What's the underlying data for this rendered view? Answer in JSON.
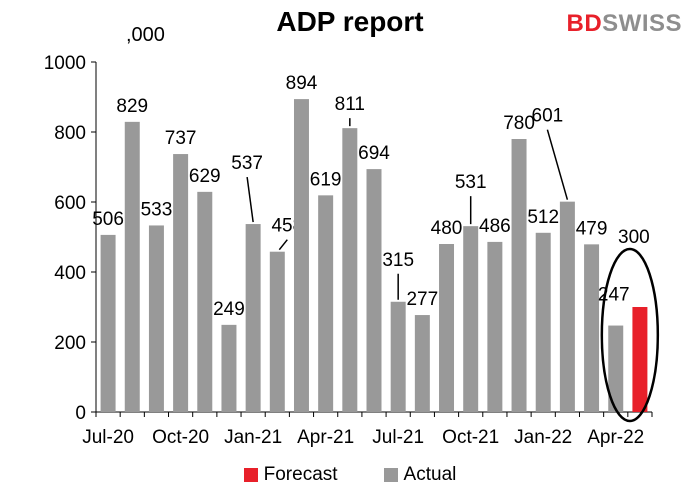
{
  "logo": {
    "part1": "BD",
    "part2": "SWISS"
  },
  "colors": {
    "actual": "#999999",
    "forecast": "#e8202a",
    "highlight_circle": "#000000"
  },
  "chart_data": {
    "type": "bar",
    "title": "ADP report",
    "unit_label": ",000",
    "ylim": [
      0,
      1000
    ],
    "yticks": [
      0,
      200,
      400,
      600,
      800,
      1000
    ],
    "grid": false,
    "legend_position": "bottom",
    "x_tick_labels": [
      "Jul-20",
      "Oct-20",
      "Jan-21",
      "Apr-21",
      "Jul-21",
      "Oct-21",
      "Jan-22",
      "Apr-22"
    ],
    "series": [
      {
        "name": "Actual",
        "values": [
          506,
          829,
          533,
          737,
          629,
          249,
          537,
          458,
          894,
          619,
          811,
          694,
          315,
          277,
          480,
          531,
          486,
          780,
          512,
          601,
          479,
          247,
          null
        ]
      },
      {
        "name": "Forecast",
        "values": [
          null,
          null,
          null,
          null,
          null,
          null,
          null,
          null,
          null,
          null,
          null,
          null,
          null,
          null,
          null,
          null,
          null,
          null,
          null,
          null,
          null,
          null,
          300
        ]
      }
    ]
  }
}
